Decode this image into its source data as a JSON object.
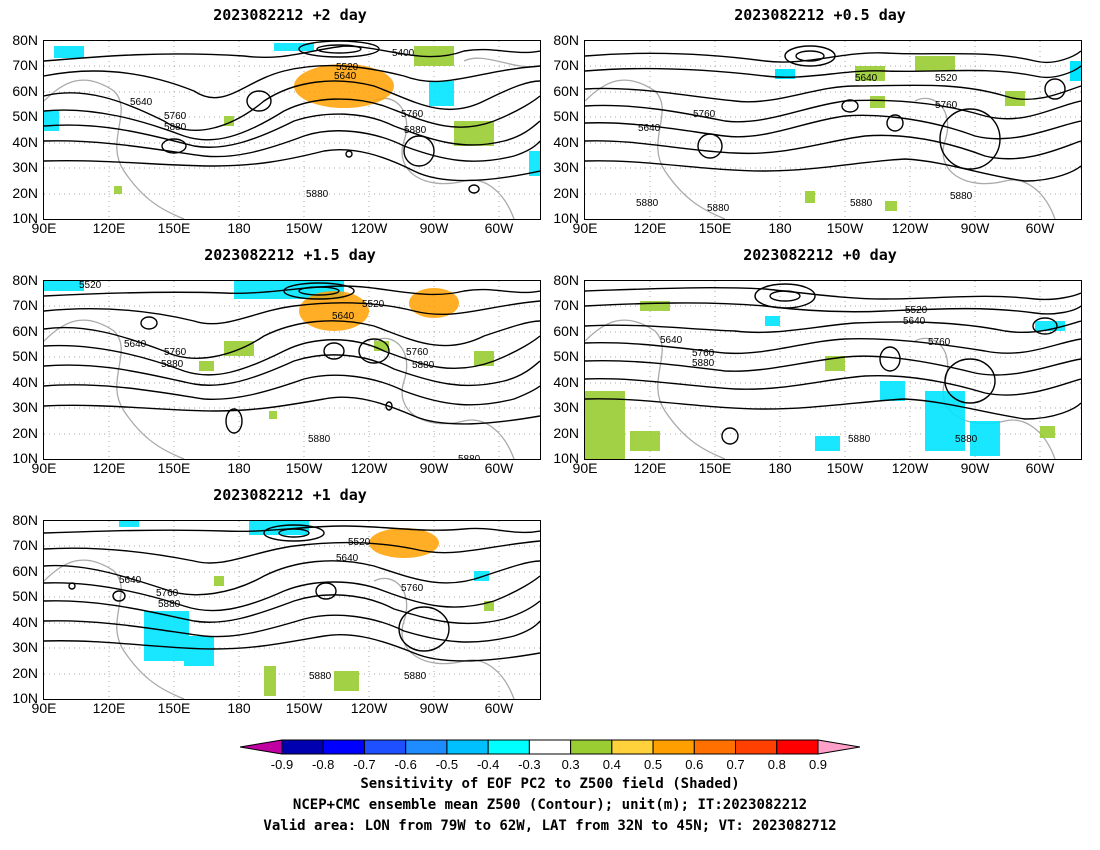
{
  "panels": [
    {
      "title": "2023082212 +2 day"
    },
    {
      "title": "2023082212 +0.5 day"
    },
    {
      "title": "2023082212 +1.5 day"
    },
    {
      "title": "2023082212 +0 day"
    },
    {
      "title": "2023082212 +1 day"
    }
  ],
  "lat_labels": [
    "80N",
    "70N",
    "60N",
    "50N",
    "40N",
    "30N",
    "20N",
    "10N"
  ],
  "lon_labels": [
    "90E",
    "120E",
    "150E",
    "180",
    "150W",
    "120W",
    "90W",
    "60W"
  ],
  "contour_labels": {
    "p0": [
      "5400",
      "5520",
      "5640",
      "5640",
      "5760",
      "5880",
      "5760",
      "5880",
      "5880"
    ],
    "p1": [
      "5640",
      "5520",
      "5760",
      "5640",
      "5760",
      "5880",
      "5880",
      "5880",
      "5880"
    ],
    "p2": [
      "5520",
      "5520",
      "5640",
      "5640",
      "5760",
      "5880",
      "5760",
      "5880",
      "5880",
      "5880"
    ],
    "p3": [
      "5520",
      "5640",
      "5640",
      "5760",
      "5760",
      "5880",
      "5880",
      "5880"
    ],
    "p4": [
      "5520",
      "5640",
      "5640",
      "5760",
      "5760",
      "5880",
      "5880",
      "5880"
    ]
  },
  "colorbar": {
    "ticks": [
      "-0.9",
      "-0.8",
      "-0.7",
      "-0.6",
      "-0.5",
      "-0.4",
      "-0.3",
      "0.3",
      "0.4",
      "0.5",
      "0.6",
      "0.7",
      "0.8",
      "0.9"
    ],
    "colors": [
      "#0000b0",
      "#0000ff",
      "#1e50ff",
      "#1e8cff",
      "#00c0ff",
      "#00ffff",
      "#ffffff",
      "#9acd32",
      "#ffd23c",
      "#ffa000",
      "#ff7000",
      "#ff4000",
      "#ff0000"
    ],
    "low_color": "#c000a0",
    "high_color": "#ffa0c8"
  },
  "caption": {
    "line1": "Sensitivity of EOF PC2 to Z500 field (Shaded)",
    "line2": "NCEP+CMC ensemble mean Z500 (Contour); unit(m); IT:2023082212",
    "line3": "Valid area: LON from 79W to 62W, LAT from 32N to 45N; VT: 2023082712"
  }
}
